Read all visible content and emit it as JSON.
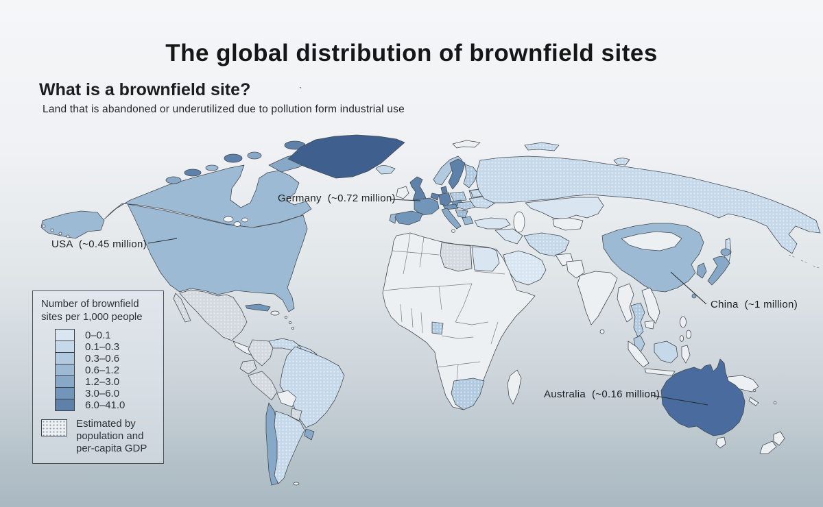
{
  "page": {
    "title": "The global distribution of brownfield sites",
    "question": "What is a brownfield site?",
    "definition": "Land that is abandoned or underutilized due to pollution form industrial use",
    "stray_mark": "`"
  },
  "legend": {
    "title_line1": "Number of brownfield",
    "title_line2": "sites per 1,000 people",
    "classes": [
      {
        "range": "0–0.1",
        "color": "#d9e6f1"
      },
      {
        "range": "0.1–0.3",
        "color": "#c6d9ea"
      },
      {
        "range": "0.3–0.6",
        "color": "#b1cadf"
      },
      {
        "range": "0.6–1.2",
        "color": "#9cbad4"
      },
      {
        "range": "1.2–3.0",
        "color": "#87a9c7"
      },
      {
        "range": "3.0–6.0",
        "color": "#7296b9"
      },
      {
        "range": "6.0–41.0",
        "color": "#5d81a8"
      }
    ],
    "estimated": {
      "label_line1": "Estimated by",
      "label_line2": "population and",
      "label_line3": "per-capita GDP"
    }
  },
  "annotations": {
    "germany": {
      "label": "Germany  (~0.72 million)"
    },
    "usa": {
      "label": "USA  (~0.45 million)"
    },
    "china": {
      "label": "China  (~1 million)"
    },
    "australia": {
      "label": "Australia  (~0.16 million)"
    }
  },
  "map_palette": {
    "estimated_gray": "#d3d9de",
    "australia_blue": "#4a6b9d",
    "greenland_blue": "#3f608e",
    "land_pale": "#edf0f2",
    "water": "#f2f4f6",
    "border": "#444b52",
    "leader_line": "#2a2e33"
  },
  "map": {
    "regions": {
      "alaska": {
        "fill": "class4"
      },
      "canada": {
        "fill": "class4"
      },
      "usa": {
        "fill": "class4"
      },
      "greenland": {
        "fill": "greenland_blue"
      },
      "arctic_a": {
        "fill": "class5"
      },
      "arctic_b": {
        "fill": "class7"
      },
      "arctic_c": {
        "fill": "class4"
      },
      "arctic_d": {
        "fill": "class7"
      },
      "arctic_e": {
        "fill": "class5"
      },
      "arctic_f": {
        "fill": "class7"
      },
      "baffin": {
        "fill": "class5"
      },
      "mexico": {
        "fill": "estimated_gray",
        "dotted": true
      },
      "cuba": {
        "fill": "class6"
      },
      "venezuela": {
        "fill": "class2",
        "dotted": true
      },
      "colombia": {
        "fill": "estimated_gray",
        "dotted": true
      },
      "ecuador": {
        "fill": "estimated_gray",
        "dotted": true
      },
      "peru": {
        "fill": "estimated_gray",
        "dotted": true
      },
      "guyanas": {
        "fill": "class2",
        "dotted": true
      },
      "brazil": {
        "fill": "class2",
        "dotted": true
      },
      "paraguay": {
        "fill": "estimated_gray",
        "dotted": true
      },
      "chile": {
        "fill": "class5"
      },
      "argentina": {
        "fill": "class2",
        "dotted": true
      },
      "uruguay": {
        "fill": "class5"
      },
      "iceland": {
        "fill": "class2"
      },
      "uk": {
        "fill": "class7"
      },
      "norway": {
        "fill": "class3"
      },
      "sweden": {
        "fill": "class7"
      },
      "finland": {
        "fill": "class3",
        "dotted": true
      },
      "denmark": {
        "fill": "class7"
      },
      "baltics": {
        "fill": "class3",
        "dotted": true
      },
      "poland": {
        "fill": "class3",
        "dotted": true
      },
      "germany": {
        "fill": "class7"
      },
      "benelux": {
        "fill": "class7"
      },
      "france": {
        "fill": "class6"
      },
      "spain": {
        "fill": "class6"
      },
      "portugal": {
        "fill": "class4"
      },
      "alpine": {
        "fill": "class6"
      },
      "czech": {
        "fill": "class6"
      },
      "italy": {
        "fill": "class5"
      },
      "hungary_romania": {
        "fill": "class3",
        "dotted": true
      },
      "balkans": {
        "fill": "class4",
        "dotted": true
      },
      "greece": {
        "fill": "class4"
      },
      "ukraine": {
        "fill": "class2",
        "dotted": true
      },
      "belarus": {
        "fill": "class2",
        "dotted": true
      },
      "russia": {
        "fill": "class2",
        "dotted": true
      },
      "novaya_zemlya": {
        "fill": "class2",
        "dotted": true
      },
      "franz_josef": {
        "fill": "class2",
        "dotted": true
      },
      "kazakhstan": {
        "fill": "class1"
      },
      "turkey": {
        "fill": "class1"
      },
      "levant_iraq": {
        "fill": "class1"
      },
      "iran": {
        "fill": "class2",
        "dotted": true
      },
      "saudi": {
        "fill": "class1",
        "dotted": true
      },
      "libya": {
        "fill": "estimated_gray",
        "dotted": true
      },
      "egypt": {
        "fill": "class1"
      },
      "gabon": {
        "fill": "class3",
        "dotted": true
      },
      "south_africa": {
        "fill": "class3",
        "dotted": true
      },
      "china": {
        "fill": "class4"
      },
      "korea": {
        "fill": "class5"
      },
      "japan": {
        "fill": "class5"
      },
      "hokkaido": {
        "fill": "class5"
      },
      "sakhalin": {
        "fill": "class2",
        "dotted": true
      },
      "taiwan": {
        "fill": "class5"
      },
      "thailand": {
        "fill": "class3",
        "dotted": true
      },
      "malaysia": {
        "fill": "class3"
      },
      "borneo": {
        "fill": "class2"
      },
      "australia": {
        "fill": "australia_blue"
      }
    }
  }
}
